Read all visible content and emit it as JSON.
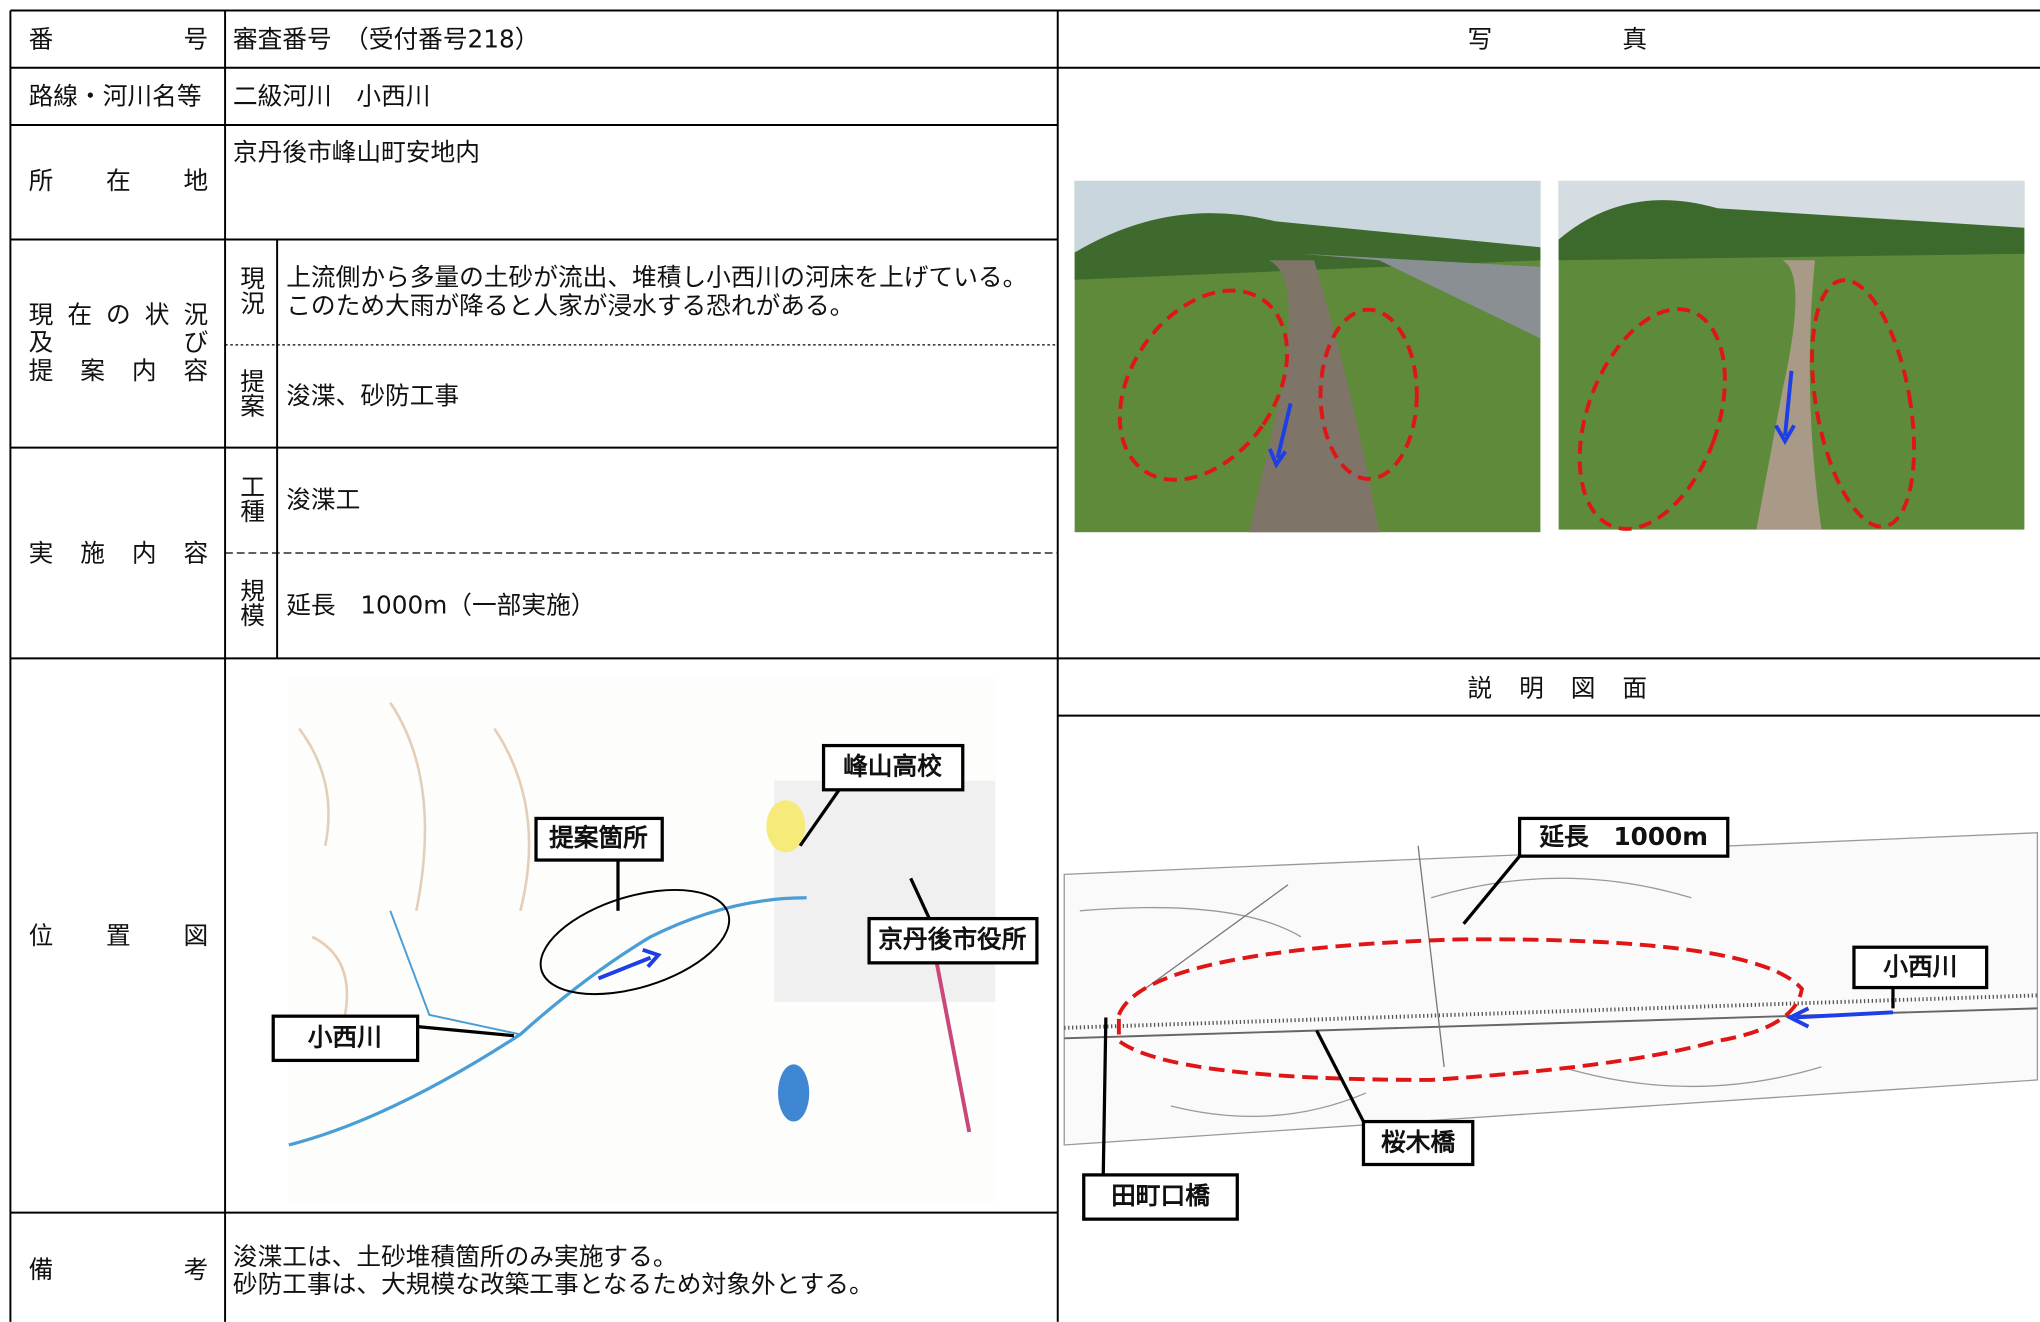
{
  "table": {
    "number": {
      "label": "番　号",
      "value": "審査番号　（受付番号218）"
    },
    "route": {
      "label": "路線・河川名等",
      "value": "二級河川　小西川"
    },
    "location": {
      "label": "所　在　地",
      "value": "京丹後市峰山町安地内"
    },
    "status": {
      "label_lines": [
        "現在の状況",
        "及　び",
        "提案内容"
      ],
      "current_label": "現況",
      "current_lines": [
        "上流側から多量の土砂が流出、堆積し小西川の河床を上げている。",
        "このため大雨が降ると人家が浸水する恐れがある。"
      ],
      "proposal_label": "提案",
      "proposal": "浚渫、砂防工事"
    },
    "implementation": {
      "label": "実　施　内　容",
      "type_label": "工種",
      "type": "浚渫工",
      "scale_label": "規模",
      "scale": "延長　1000m（一部実施）"
    },
    "location_map": {
      "label": "位　置　図",
      "callouts": [
        "峰山高校",
        "提案箇所",
        "京丹後市役所",
        "小西川"
      ]
    },
    "remarks": {
      "label": "備　考",
      "lines": [
        "浚渫工は、土砂堆積箇所のみ実施する。",
        "砂防工事は、大規模な改築工事となるため対象外とする。"
      ]
    }
  },
  "photos": {
    "title": "写　真"
  },
  "diagram": {
    "title": "説　明　図　面",
    "callouts": [
      "延長　1000m",
      "小西川",
      "桜木橋",
      "田町口橋"
    ]
  }
}
